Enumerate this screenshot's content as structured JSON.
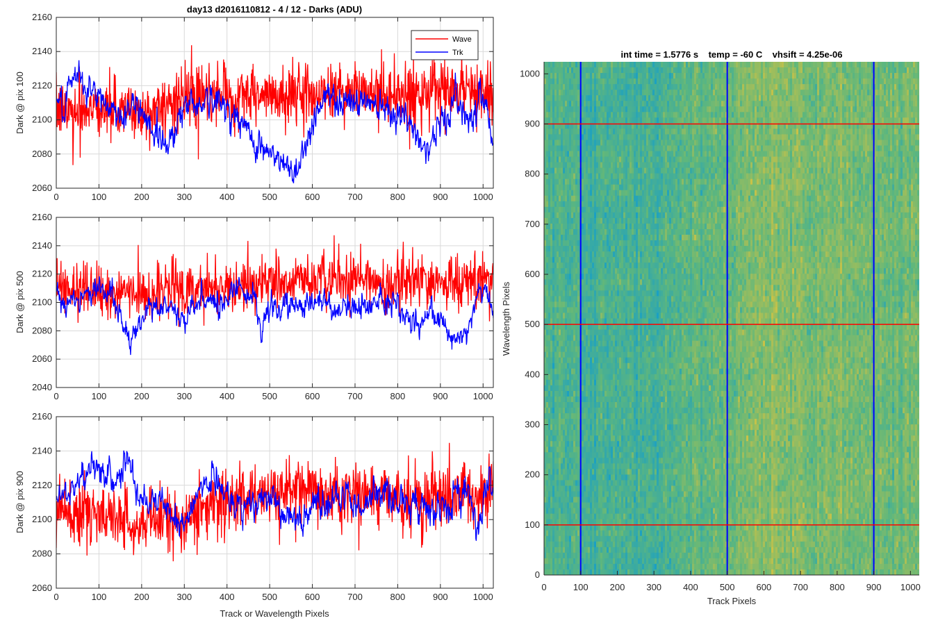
{
  "colors": {
    "wave": "#ff0000",
    "trk": "#0000ff",
    "grid": "#d9d9d9",
    "axis": "#262626",
    "image_low": "#1aa0c4",
    "image_mid": "#5fb77c",
    "image_high": "#c9c247"
  },
  "chart_data": [
    {
      "type": "line",
      "title": "day13 d2016110812 - 4 / 12 - Darks (ADU)",
      "ylabel": "Dark @ pix 100",
      "xlabel": "",
      "xlim": [
        0,
        1024
      ],
      "ylim": [
        2060,
        2160
      ],
      "xticks": [
        0,
        100,
        200,
        300,
        400,
        500,
        600,
        700,
        800,
        900,
        1000
      ],
      "yticks": [
        2060,
        2080,
        2100,
        2120,
        2140,
        2160
      ],
      "grid": true,
      "legend": {
        "position": "top-right",
        "entries": [
          "Wave",
          "Trk"
        ]
      },
      "series": [
        {
          "name": "Wave",
          "color": "#ff0000",
          "mean": 2110,
          "noise": 11,
          "baseline": [
            [
              0,
              2105
            ],
            [
              100,
              2108
            ],
            [
              200,
              2104
            ],
            [
              300,
              2112
            ],
            [
              400,
              2114
            ],
            [
              500,
              2113
            ],
            [
              600,
              2116
            ],
            [
              700,
              2117
            ],
            [
              800,
              2114
            ],
            [
              900,
              2116
            ],
            [
              1024,
              2117
            ]
          ]
        },
        {
          "name": "Trk",
          "color": "#0000ff",
          "noise": 4,
          "baseline": [
            [
              0,
              2112
            ],
            [
              20,
              2105
            ],
            [
              45,
              2125
            ],
            [
              70,
              2120
            ],
            [
              100,
              2112
            ],
            [
              150,
              2103
            ],
            [
              200,
              2108
            ],
            [
              230,
              2092
            ],
            [
              260,
              2086
            ],
            [
              300,
              2108
            ],
            [
              350,
              2112
            ],
            [
              400,
              2108
            ],
            [
              440,
              2095
            ],
            [
              470,
              2087
            ],
            [
              500,
              2080
            ],
            [
              530,
              2073
            ],
            [
              560,
              2070
            ],
            [
              590,
              2090
            ],
            [
              620,
              2112
            ],
            [
              650,
              2113
            ],
            [
              700,
              2110
            ],
            [
              750,
              2112
            ],
            [
              800,
              2105
            ],
            [
              840,
              2093
            ],
            [
              870,
              2083
            ],
            [
              900,
              2098
            ],
            [
              940,
              2112
            ],
            [
              970,
              2100
            ],
            [
              990,
              2115
            ],
            [
              1010,
              2108
            ],
            [
              1024,
              2090
            ]
          ]
        }
      ]
    },
    {
      "type": "line",
      "title": "",
      "ylabel": "Dark @ pix 500",
      "xlabel": "",
      "xlim": [
        0,
        1024
      ],
      "ylim": [
        2040,
        2160
      ],
      "xticks": [
        0,
        100,
        200,
        300,
        400,
        500,
        600,
        700,
        800,
        900,
        1000
      ],
      "yticks": [
        2040,
        2060,
        2080,
        2100,
        2120,
        2140,
        2160
      ],
      "grid": true,
      "series": [
        {
          "name": "Wave",
          "color": "#ff0000",
          "noise": 12,
          "baseline": [
            [
              0,
              2108
            ],
            [
              100,
              2108
            ],
            [
              200,
              2106
            ],
            [
              300,
              2110
            ],
            [
              400,
              2112
            ],
            [
              500,
              2113
            ],
            [
              600,
              2115
            ],
            [
              700,
              2116
            ],
            [
              800,
              2114
            ],
            [
              900,
              2114
            ],
            [
              1024,
              2115
            ]
          ]
        },
        {
          "name": "Trk",
          "color": "#0000ff",
          "noise": 4,
          "baseline": [
            [
              0,
              2110
            ],
            [
              30,
              2098
            ],
            [
              60,
              2108
            ],
            [
              100,
              2110
            ],
            [
              130,
              2105
            ],
            [
              160,
              2080
            ],
            [
              180,
              2073
            ],
            [
              210,
              2096
            ],
            [
              240,
              2097
            ],
            [
              270,
              2098
            ],
            [
              300,
              2086
            ],
            [
              340,
              2102
            ],
            [
              380,
              2098
            ],
            [
              410,
              2108
            ],
            [
              430,
              2110
            ],
            [
              460,
              2106
            ],
            [
              480,
              2078
            ],
            [
              500,
              2096
            ],
            [
              540,
              2098
            ],
            [
              570,
              2100
            ],
            [
              600,
              2094
            ],
            [
              620,
              2103
            ],
            [
              650,
              2092
            ],
            [
              690,
              2097
            ],
            [
              730,
              2099
            ],
            [
              770,
              2098
            ],
            [
              800,
              2095
            ],
            [
              830,
              2085
            ],
            [
              860,
              2088
            ],
            [
              890,
              2092
            ],
            [
              920,
              2080
            ],
            [
              950,
              2074
            ],
            [
              970,
              2082
            ],
            [
              990,
              2112
            ],
            [
              1010,
              2108
            ],
            [
              1024,
              2096
            ]
          ]
        }
      ]
    },
    {
      "type": "line",
      "title": "",
      "ylabel": "Dark @ pix 900",
      "xlabel": "Track or Wavelength Pixels",
      "xlim": [
        0,
        1024
      ],
      "ylim": [
        2060,
        2160
      ],
      "xticks": [
        0,
        100,
        200,
        300,
        400,
        500,
        600,
        700,
        800,
        900,
        1000
      ],
      "yticks": [
        2060,
        2080,
        2100,
        2120,
        2140,
        2160
      ],
      "grid": true,
      "series": [
        {
          "name": "Wave",
          "color": "#ff0000",
          "noise": 12,
          "baseline": [
            [
              0,
              2106
            ],
            [
              100,
              2103
            ],
            [
              200,
              2098
            ],
            [
              300,
              2102
            ],
            [
              400,
              2112
            ],
            [
              500,
              2115
            ],
            [
              600,
              2115
            ],
            [
              700,
              2113
            ],
            [
              800,
              2112
            ],
            [
              900,
              2113
            ],
            [
              1024,
              2118
            ]
          ]
        },
        {
          "name": "Trk",
          "color": "#0000ff",
          "noise": 4,
          "baseline": [
            [
              0,
              2115
            ],
            [
              30,
              2112
            ],
            [
              60,
              2126
            ],
            [
              100,
              2130
            ],
            [
              130,
              2122
            ],
            [
              160,
              2132
            ],
            [
              180,
              2124
            ],
            [
              210,
              2108
            ],
            [
              240,
              2112
            ],
            [
              270,
              2106
            ],
            [
              300,
              2098
            ],
            [
              340,
              2118
            ],
            [
              370,
              2124
            ],
            [
              400,
              2112
            ],
            [
              440,
              2105
            ],
            [
              480,
              2112
            ],
            [
              520,
              2107
            ],
            [
              560,
              2098
            ],
            [
              600,
              2110
            ],
            [
              640,
              2107
            ],
            [
              680,
              2115
            ],
            [
              700,
              2105
            ],
            [
              730,
              2112
            ],
            [
              760,
              2119
            ],
            [
              800,
              2112
            ],
            [
              840,
              2108
            ],
            [
              880,
              2105
            ],
            [
              920,
              2110
            ],
            [
              960,
              2118
            ],
            [
              990,
              2096
            ],
            [
              1010,
              2120
            ],
            [
              1024,
              2118
            ]
          ]
        }
      ]
    },
    {
      "type": "heatmap",
      "title": "int time = 1.5776 s    temp = -60 C    vhsift = 4.25e-06",
      "xlabel": "Track Pixels",
      "ylabel": "Wavelength Pixels",
      "xlim": [
        0,
        1024
      ],
      "ylim": [
        0,
        1024
      ],
      "xticks": [
        0,
        100,
        200,
        300,
        400,
        500,
        600,
        700,
        800,
        900,
        1000
      ],
      "yticks": [
        0,
        100,
        200,
        300,
        400,
        500,
        600,
        700,
        800,
        900,
        1000
      ],
      "vertical_lines": {
        "positions": [
          100,
          500,
          900
        ],
        "color": "#0000ff"
      },
      "horizontal_lines": {
        "positions": [
          100,
          500,
          900
        ],
        "color": "#ff0000"
      }
    }
  ]
}
